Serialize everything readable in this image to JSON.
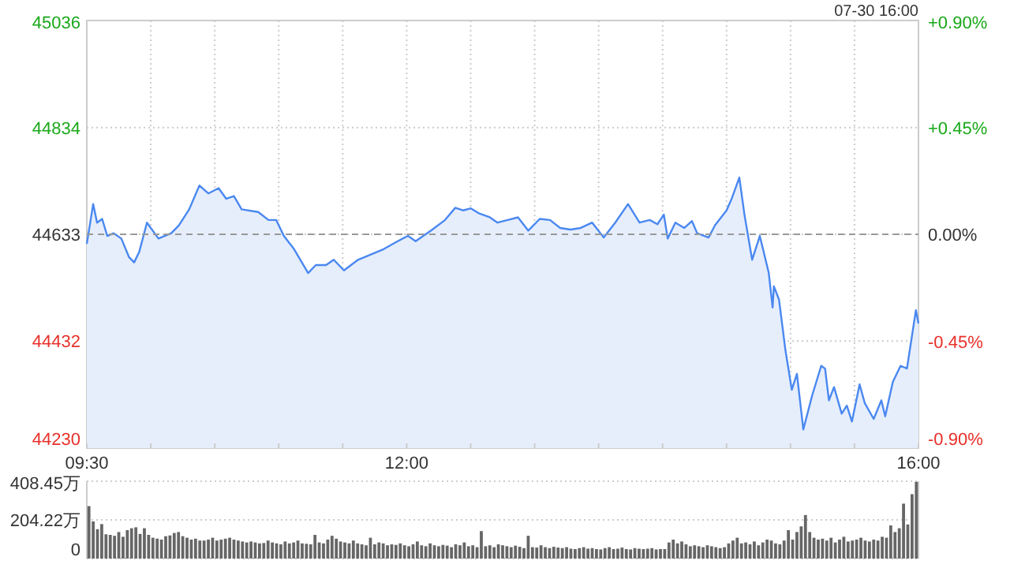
{
  "chart_data": [
    {
      "type": "area",
      "color": "#4a88f0",
      "annotations": [
        "07-30 16:00"
      ],
      "x": [
        9.5,
        9.55,
        9.58,
        9.62,
        9.66,
        9.71,
        9.77,
        9.83,
        9.87,
        9.91,
        9.97,
        10.06,
        10.16,
        10.22,
        10.3,
        10.38,
        10.45,
        10.53,
        10.59,
        10.65,
        10.71,
        10.84,
        10.92,
        10.98,
        11.04,
        11.12,
        11.23,
        11.29,
        11.37,
        11.43,
        11.51,
        11.62,
        11.72,
        11.82,
        11.93,
        12.01,
        12.07,
        12.19,
        12.3,
        12.38,
        12.44,
        12.5,
        12.56,
        12.65,
        12.71,
        12.79,
        12.87,
        12.95,
        13.04,
        13.12,
        13.2,
        13.28,
        13.36,
        13.45,
        13.54,
        13.63,
        13.73,
        13.82,
        13.9,
        13.96,
        14.01,
        14.04,
        14.1,
        14.17,
        14.23,
        14.27,
        14.36,
        14.41,
        14.5,
        14.54,
        14.6,
        14.64,
        14.7,
        14.76,
        14.83,
        14.86,
        14.87,
        14.91,
        14.96,
        15.01,
        15.05,
        15.1,
        15.17,
        15.24,
        15.27,
        15.3,
        15.34,
        15.4,
        15.44,
        15.48,
        15.54,
        15.58,
        15.65,
        15.71,
        15.74,
        15.8,
        15.86,
        15.91,
        15.98,
        16
      ],
      "values": [
        44615,
        44690,
        44655,
        44662,
        44630,
        44635,
        44625,
        44590,
        44580,
        44600,
        44655,
        44625,
        44635,
        44650,
        44680,
        44725,
        44710,
        44720,
        44700,
        44705,
        44680,
        44675,
        44660,
        44660,
        44630,
        44605,
        44560,
        44575,
        44575,
        44585,
        44565,
        44585,
        44595,
        44605,
        44620,
        44630,
        44620,
        44640,
        44660,
        44683,
        44678,
        44682,
        44673,
        44665,
        44655,
        44660,
        44665,
        44640,
        44662,
        44660,
        44645,
        44642,
        44645,
        44655,
        44627,
        44655,
        44690,
        44655,
        44660,
        44652,
        44670,
        44625,
        44655,
        44645,
        44658,
        44635,
        44627,
        44650,
        44678,
        44700,
        44740,
        44670,
        44585,
        44630,
        44560,
        44495,
        44535,
        44510,
        44415,
        44340,
        44370,
        44265,
        44330,
        44385,
        44380,
        44320,
        44345,
        44295,
        44310,
        44280,
        44350,
        44315,
        44285,
        44320,
        44290,
        44355,
        44385,
        44380,
        44490,
        44465
      ],
      "xlim": [
        9.5,
        16
      ],
      "xticks": [
        {
          "value": 9.5,
          "label": "09:30"
        },
        {
          "value": 10,
          "label": null
        },
        {
          "value": 10.5,
          "label": null
        },
        {
          "value": 11,
          "label": null
        },
        {
          "value": 11.5,
          "label": null
        },
        {
          "value": 12,
          "label": "12:00"
        },
        {
          "value": 12.5,
          "label": null
        },
        {
          "value": 13,
          "label": null
        },
        {
          "value": 13.5,
          "label": null
        },
        {
          "value": 14,
          "label": null
        },
        {
          "value": 14.5,
          "label": null
        },
        {
          "value": 15,
          "label": null
        },
        {
          "value": 15.5,
          "label": null
        },
        {
          "value": 16,
          "label": "16:00"
        }
      ],
      "ylim": [
        44230,
        45036
      ],
      "yticks": [
        44230,
        44432,
        44633,
        44834,
        45036
      ],
      "y2lim": [
        -0.9,
        0.9
      ],
      "y2ticks": [
        {
          "value": -0.9,
          "label": "-0.90%"
        },
        {
          "value": -0.45,
          "label": "-0.45%"
        },
        {
          "value": 0,
          "label": "0.00%"
        },
        {
          "value": 0.45,
          "label": "+0.45%"
        },
        {
          "value": 0.9,
          "label": "+0.90%"
        }
      ],
      "ref_lines": [
        {
          "axis": "y",
          "value": 44633,
          "color": "#999999",
          "line_style": "dashed"
        }
      ],
      "grid": true
    },
    {
      "type": "bar",
      "color": "#666666",
      "tick_labels": "y",
      "grid": "y",
      "categories": [
        null,
        null,
        null,
        null,
        null,
        null,
        null,
        null,
        null,
        null,
        null,
        null,
        null,
        null,
        null,
        null,
        null,
        null,
        null,
        null,
        null,
        null,
        null,
        null,
        null,
        null,
        null,
        null,
        null,
        null,
        null,
        null,
        null,
        null,
        null,
        null,
        null,
        null,
        null,
        null,
        null,
        null,
        null,
        null,
        null,
        null,
        null,
        null,
        null,
        null,
        null,
        null,
        null,
        null,
        null,
        null,
        null,
        null,
        null,
        null,
        null,
        null,
        null,
        null,
        null,
        null,
        null,
        null,
        null,
        null,
        null,
        null,
        null,
        null,
        null,
        null,
        null,
        null,
        null,
        null,
        null,
        null,
        null,
        null,
        null,
        null,
        null,
        null,
        null,
        null,
        null,
        null,
        null,
        null,
        null,
        null,
        null,
        null,
        null,
        null,
        null,
        null,
        null,
        null,
        null,
        null,
        null,
        null,
        null,
        null,
        null,
        null,
        null,
        null,
        null,
        null,
        null,
        null,
        null,
        null,
        null,
        null,
        null,
        null,
        null,
        null,
        null,
        null,
        null,
        null,
        null,
        null,
        null,
        null,
        null,
        null,
        null,
        null,
        null,
        null,
        null,
        null,
        null,
        null,
        null,
        null,
        null,
        null,
        null,
        null,
        null,
        null,
        null,
        null,
        null,
        null,
        null,
        null,
        null,
        null,
        null,
        null,
        null,
        null,
        null,
        null,
        null,
        null,
        null,
        null,
        null,
        null,
        null,
        null,
        null,
        null,
        null,
        null,
        null,
        null,
        null,
        null,
        null,
        null,
        null,
        null,
        null,
        null,
        null,
        null,
        null,
        null,
        null,
        null,
        null
      ],
      "values": [
        277,
        196,
        155,
        182,
        128,
        125,
        120,
        140,
        115,
        150,
        160,
        165,
        130,
        160,
        125,
        110,
        105,
        100,
        118,
        122,
        135,
        140,
        118,
        110,
        100,
        105,
        95,
        95,
        100,
        110,
        95,
        100,
        105,
        110,
        100,
        95,
        90,
        85,
        90,
        85,
        80,
        82,
        95,
        85,
        80,
        75,
        90,
        80,
        85,
        95,
        80,
        78,
        75,
        125,
        85,
        80,
        100,
        120,
        105,
        90,
        85,
        80,
        95,
        80,
        75,
        70,
        110,
        75,
        85,
        80,
        70,
        75,
        72,
        80,
        70,
        65,
        75,
        90,
        70,
        65,
        80,
        70,
        65,
        72,
        68,
        60,
        75,
        70,
        85,
        65,
        70,
        60,
        145,
        65,
        70,
        60,
        75,
        70,
        65,
        60,
        68,
        62,
        55,
        120,
        60,
        58,
        70,
        60,
        55,
        62,
        58,
        55,
        60,
        52,
        50,
        55,
        60,
        52,
        55,
        50,
        48,
        55,
        60,
        50,
        52,
        58,
        50,
        48,
        55,
        52,
        50,
        52,
        55,
        48,
        50,
        50,
        85,
        100,
        80,
        90,
        75,
        65,
        70,
        65,
        60,
        70,
        65,
        60,
        55,
        60,
        80,
        95,
        110,
        80,
        85,
        75,
        90,
        70,
        85,
        100,
        95,
        80,
        75,
        95,
        150,
        100,
        140,
        170,
        230,
        140,
        110,
        100,
        105,
        95,
        110,
        85,
        100,
        115,
        90,
        95,
        100,
        110,
        95,
        90,
        100,
        95,
        115,
        110,
        175,
        140,
        160,
        290,
        180,
        340,
        405
      ],
      "ylim": [
        0,
        408.45
      ],
      "yticks": [
        0,
        {
          "value": 204.22,
          "label": "204.22万"
        },
        {
          "value": 408.45,
          "label": "408.45万"
        }
      ]
    }
  ]
}
